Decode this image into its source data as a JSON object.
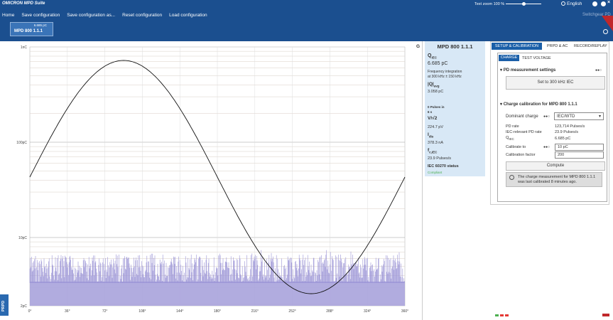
{
  "header": {
    "app_title": "OMICRON MPD Suite",
    "menu": [
      "Home",
      "Save configuration",
      "Save configuration as...",
      "Reset configuration",
      "Load configuration"
    ],
    "text_zoom": "Text zoom 100 %",
    "language": "English",
    "user": "Switchgear PD"
  },
  "device_tab": {
    "value": "6.685 pC",
    "name": "MPD 800 1.1.1"
  },
  "plot": {
    "corner": "G",
    "side_tab": "PRPD",
    "y_ticks": [
      "1nC",
      "100pC",
      "10pC",
      "2pC"
    ],
    "x_ticks": [
      "0°",
      "36°",
      "72°",
      "108°",
      "144°",
      "180°",
      "216°",
      "252°",
      "288°",
      "324°",
      "360°"
    ]
  },
  "info_panel": {
    "title": "MPD 800 1.1.1",
    "q_iec_symbol": "Q",
    "q_iec_sub": "IEC",
    "q_iec_value": "6.685 pC",
    "freq_label": "Frequency integration",
    "freq_value": "at 300 kHz ± 150 kHz",
    "q_avg_symbol": "|Q|",
    "q_avg_sub": "avg",
    "q_avg_value": "3.058 pC",
    "pulses_label": "0 Pulses in",
    "pulses_time": "6 s",
    "voltage_symbol": "V/√2",
    "voltage_value": "224.7 pV",
    "current_symbol": "I",
    "current_sub": "dis",
    "current_value": "378.3 nA",
    "rate_symbol": "f",
    "rate_sub": "c,IEC",
    "rate_value": "23.9 Pulses/s",
    "status_label": "IEC 60270 status",
    "status_value": "Compliant"
  },
  "settings": {
    "tabs": [
      "SETUP & CALIBRATION",
      "PRPD & AC",
      "RECORD/REPLAY"
    ],
    "subtabs": [
      "CHARGE",
      "TEST VOLTAGE"
    ],
    "pd_section": "PD measurement settings",
    "pd_button": "Set to 300 kHz IEC",
    "cal_section": "Charge calibration for MPD 800 1.1.1",
    "dominant_label": "Dominant charge",
    "dominant_value": "IEC/WTD",
    "pd_rate_label": "PD rate",
    "pd_rate_value": "123,714 Pulses/s",
    "iec_rate_label": "IEC-relevant PD rate",
    "iec_rate_value": "23.9 Pulses/s",
    "q_symbol": "Q",
    "q_sub": "IEC",
    "q_value": "6.685 pC",
    "calibrate_label": "Calibrate to",
    "calibrate_value": "10 pC",
    "factor_label": "Calibration factor",
    "factor_value": "200",
    "compute_button": "Compute",
    "note": "The charge measurement for MPD 800 1.1.1 was last calibrated 8 minutes ago."
  }
}
